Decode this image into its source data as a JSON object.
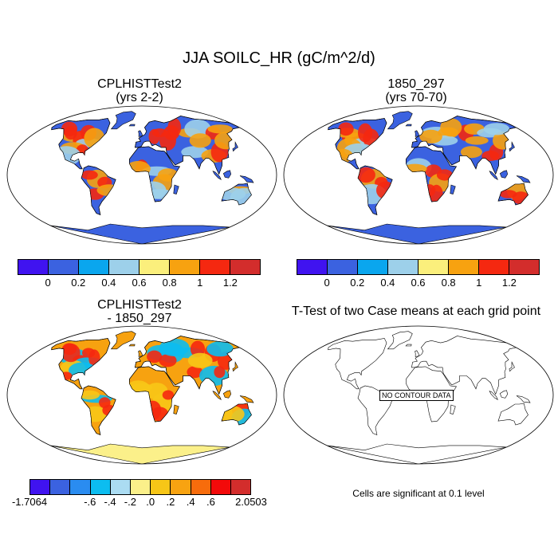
{
  "title": "JJA SOILC_HR (gC/m^2/d)",
  "panels": [
    {
      "title": "CPLHISTTest2",
      "subtitle": "(yrs 2-2)"
    },
    {
      "title": "1850_297",
      "subtitle": "(yrs 70-70)"
    },
    {
      "title": "CPLHISTTest2",
      "subtitle": "- 1850_297"
    },
    {
      "title": "T-Test of two Case means at each grid point",
      "subtitle": ""
    }
  ],
  "colorbar_top": {
    "colors": [
      "#4013f0",
      "#3b62e0",
      "#0aa6ee",
      "#9dd0ea",
      "#fbef7c",
      "#f7a210",
      "#f52810",
      "#d32d2c"
    ],
    "labels": [
      "0",
      "0.2",
      "0.4",
      "0.6",
      "0.8",
      "1",
      "1.2"
    ]
  },
  "colorbar_diff": {
    "colors": [
      "#4013f0",
      "#3b62e0",
      "#2a8cf0",
      "#0cbdf0",
      "#abdcf2",
      "#fbf08a",
      "#f7c617",
      "#f8a311",
      "#f76c0c",
      "#f30a0a",
      "#d32d2c"
    ],
    "labels": [
      "-1.7064",
      "-.6",
      "-.4",
      "-.2",
      ".0",
      ".2",
      ".4",
      ".6",
      "2.0503"
    ]
  },
  "no_contour": "NO CONTOUR DATA",
  "significance": "Cells are significant at 0.1 level",
  "map_colors": {
    "ocean": "#ffffff",
    "panel1": {
      "base": "#3b62e0",
      "warm": "#f52810",
      "mid": "#f7a210",
      "cool": "#9dd0ea",
      "antarctica": "#3b62e0"
    },
    "panel2": {
      "base": "#3b62e0",
      "warm": "#f52810",
      "mid": "#f7a210",
      "cool": "#9dd0ea",
      "antarctica": "#3b62e0"
    },
    "panel3": {
      "base": "#f7a210",
      "warm": "#f52810",
      "mid": "#f7c617",
      "cool": "#0cbdf0",
      "antarctica": "#fbf08a"
    }
  }
}
